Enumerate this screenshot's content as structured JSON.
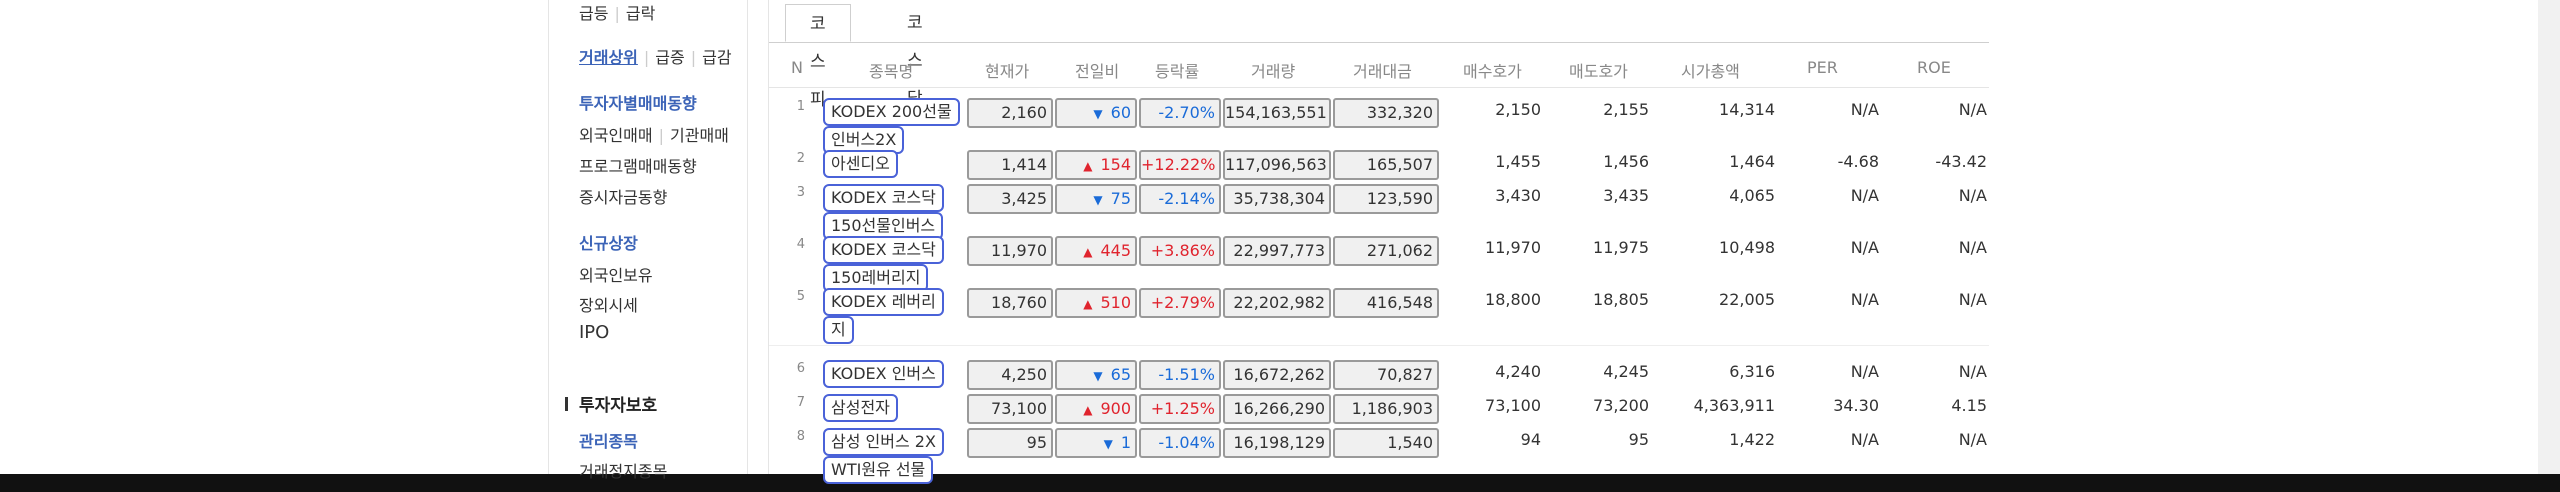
{
  "sidebar": {
    "row1": [
      "급등",
      "급락"
    ],
    "row2": [
      "거래상위",
      "급증",
      "급감"
    ],
    "investor_trend": "투자자별매매동향",
    "row4": [
      "외국인매매",
      "기관매매"
    ],
    "program": "프로그램매매동향",
    "deposit": "증시자금동향",
    "new_listing": "신규상장",
    "foreign_holding": "외국인보유",
    "otc": "장외시세",
    "ipo": "IPO",
    "protection_title": "투자자보호",
    "managed": "관리종목",
    "suspended": "거래정지종목"
  },
  "tabs": [
    "코스피",
    "코스닥"
  ],
  "headers": [
    "N",
    "종목명",
    "현재가",
    "전일비",
    "등락률",
    "거래량",
    "거래대금",
    "매수호가",
    "매도호가",
    "시가총액",
    "PER",
    "ROE"
  ],
  "rows": [
    {
      "n": "1",
      "name": [
        "KODEX 200선물",
        "인버스2X"
      ],
      "price": "2,160",
      "dir": "down",
      "arrow": "▼",
      "change": "60",
      "rate": "-2.70%",
      "volume": "154,163,551",
      "amount": "332,320",
      "bid": "2,150",
      "ask": "2,155",
      "cap": "14,314",
      "per": "N/A",
      "roe": "N/A"
    },
    {
      "n": "2",
      "name": [
        "아센디오"
      ],
      "price": "1,414",
      "dir": "up",
      "arrow": "▲",
      "change": "154",
      "rate": "+12.22%",
      "volume": "117,096,563",
      "amount": "165,507",
      "bid": "1,455",
      "ask": "1,456",
      "cap": "1,464",
      "per": "-4.68",
      "roe": "-43.42"
    },
    {
      "n": "3",
      "name": [
        "KODEX 코스닥",
        "150선물인버스"
      ],
      "price": "3,425",
      "dir": "down",
      "arrow": "▼",
      "change": "75",
      "rate": "-2.14%",
      "volume": "35,738,304",
      "amount": "123,590",
      "bid": "3,430",
      "ask": "3,435",
      "cap": "4,065",
      "per": "N/A",
      "roe": "N/A"
    },
    {
      "n": "4",
      "name": [
        "KODEX 코스닥",
        "150레버리지"
      ],
      "price": "11,970",
      "dir": "up",
      "arrow": "▲",
      "change": "445",
      "rate": "+3.86%",
      "volume": "22,997,773",
      "amount": "271,062",
      "bid": "11,970",
      "ask": "11,975",
      "cap": "10,498",
      "per": "N/A",
      "roe": "N/A"
    },
    {
      "n": "5",
      "name": [
        "KODEX 레버리",
        "지"
      ],
      "price": "18,760",
      "dir": "up",
      "arrow": "▲",
      "change": "510",
      "rate": "+2.79%",
      "volume": "22,202,982",
      "amount": "416,548",
      "bid": "18,800",
      "ask": "18,805",
      "cap": "22,005",
      "per": "N/A",
      "roe": "N/A"
    },
    {
      "n": "6",
      "name": [
        "KODEX 인버스"
      ],
      "price": "4,250",
      "dir": "down",
      "arrow": "▼",
      "change": "65",
      "rate": "-1.51%",
      "volume": "16,672,262",
      "amount": "70,827",
      "bid": "4,240",
      "ask": "4,245",
      "cap": "6,316",
      "per": "N/A",
      "roe": "N/A"
    },
    {
      "n": "7",
      "name": [
        "삼성전자"
      ],
      "price": "73,100",
      "dir": "up",
      "arrow": "▲",
      "change": "900",
      "rate": "+1.25%",
      "volume": "16,266,290",
      "amount": "1,186,903",
      "bid": "73,100",
      "ask": "73,200",
      "cap": "4,363,911",
      "per": "34.30",
      "roe": "4.15"
    },
    {
      "n": "8",
      "name": [
        "삼성 인버스 2X",
        "WTI원유 선물"
      ],
      "price": "95",
      "dir": "down",
      "arrow": "▼",
      "change": "1",
      "rate": "-1.04%",
      "volume": "16,198,129",
      "amount": "1,540",
      "bid": "94",
      "ask": "95",
      "cap": "1,422",
      "per": "N/A",
      "roe": "N/A"
    }
  ]
}
